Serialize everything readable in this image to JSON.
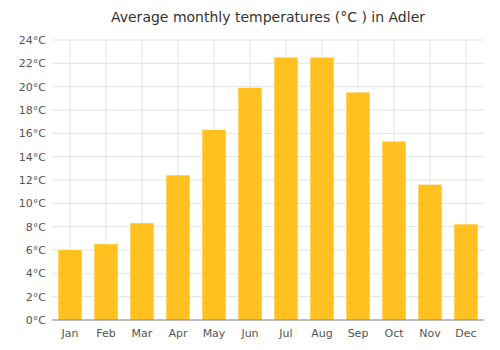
{
  "chart_data": {
    "type": "bar",
    "title": "Average monthly temperatures (°C ) in Adler",
    "categories": [
      "Jan",
      "Feb",
      "Mar",
      "Apr",
      "May",
      "Jun",
      "Jul",
      "Aug",
      "Sep",
      "Oct",
      "Nov",
      "Dec"
    ],
    "values": [
      6.0,
      6.5,
      8.3,
      12.4,
      16.3,
      19.9,
      22.5,
      22.5,
      19.5,
      15.3,
      11.6,
      8.2
    ],
    "color": "#FFC020",
    "ylim": [
      0,
      24
    ],
    "yticks": [
      {
        "value": 0,
        "label": "0°C"
      },
      {
        "value": 2,
        "label": "2°C"
      },
      {
        "value": 4,
        "label": "4°C"
      },
      {
        "value": 6,
        "label": "6°C"
      },
      {
        "value": 8,
        "label": "8°C"
      },
      {
        "value": 10,
        "label": "10°C"
      },
      {
        "value": 12,
        "label": "12°C"
      },
      {
        "value": 14,
        "label": "14°C"
      },
      {
        "value": 16,
        "label": "16°C"
      },
      {
        "value": 18,
        "label": "18°C"
      },
      {
        "value": 20,
        "label": "20°C"
      },
      {
        "value": 22,
        "label": "22°C"
      },
      {
        "value": 24,
        "label": "24°C"
      }
    ],
    "grid": true
  }
}
